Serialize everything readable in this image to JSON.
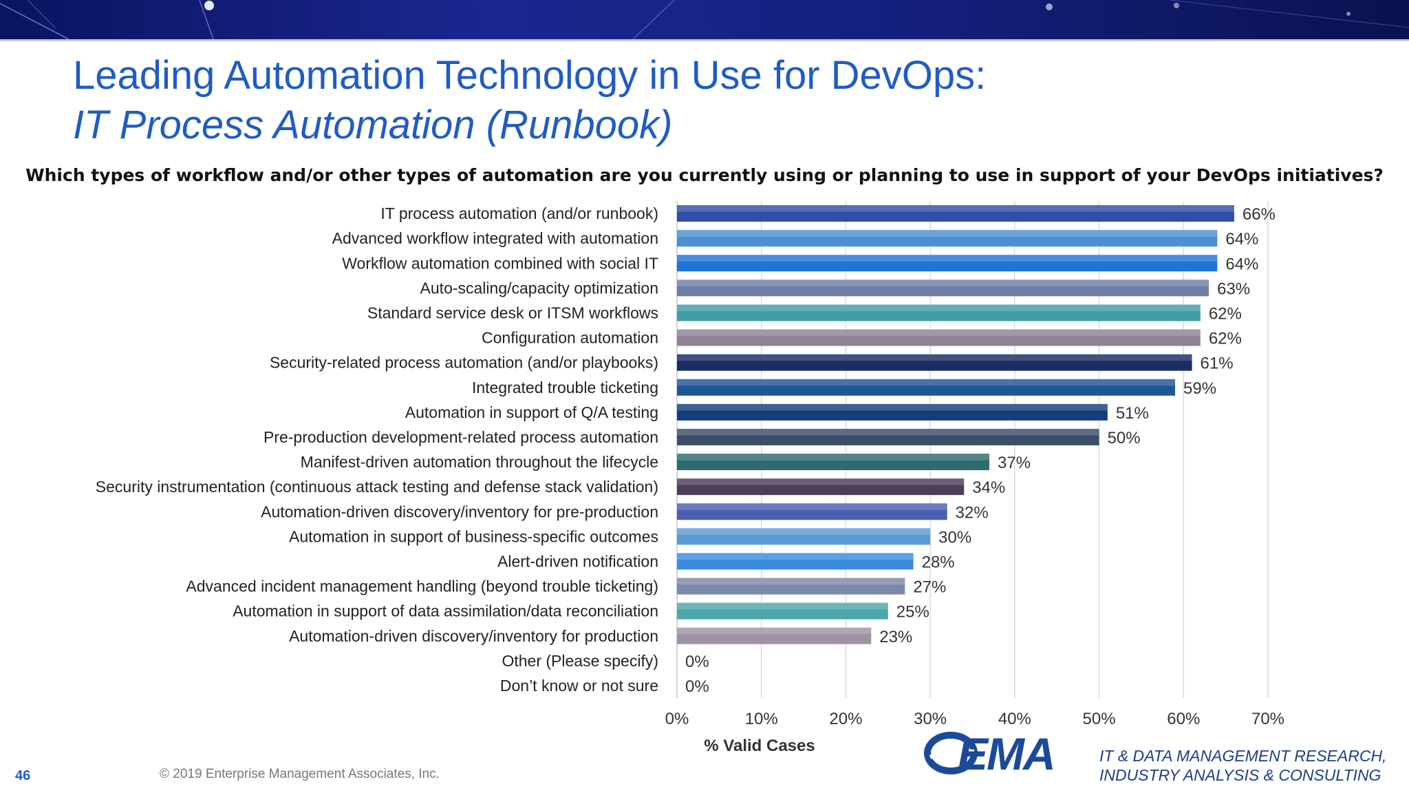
{
  "slide": {
    "title_line1": "Leading Automation Technology in Use for DevOps:",
    "title_line2": "IT Process Automation (Runbook)",
    "question": "Which types of workflow and/or other types of automation are you currently using or planning to use in support of your DevOps initiatives?",
    "page_number": "46",
    "copyright": "© 2019 Enterprise Management Associates, Inc.",
    "logo_text": "EMA",
    "tagline_line1": "IT & DATA MANAGEMENT RESEARCH,",
    "tagline_line2": "INDUSTRY ANALYSIS & CONSULTING"
  },
  "chart_data": {
    "type": "bar",
    "orientation": "horizontal",
    "xlabel": "% Valid Cases",
    "xlim": [
      0,
      70
    ],
    "xticks": [
      "0%",
      "10%",
      "20%",
      "30%",
      "40%",
      "50%",
      "60%",
      "70%"
    ],
    "grid": true,
    "categories": [
      "IT process automation (and/or runbook)",
      "Advanced workflow integrated with automation",
      "Workflow automation combined with social IT",
      "Auto-scaling/capacity optimization",
      "Standard service desk or ITSM workflows",
      "Configuration automation",
      "Security-related process automation (and/or playbooks)",
      "Integrated trouble ticketing",
      "Automation in support of Q/A testing",
      "Pre-production development-related process automation",
      "Manifest-driven automation throughout the lifecycle",
      "Security instrumentation (continuous attack testing and defense stack validation)",
      "Automation-driven discovery/inventory for pre-production",
      "Automation in support of business-specific outcomes",
      "Alert-driven notification",
      "Advanced incident management handling (beyond trouble ticketing)",
      "Automation in support of data assimilation/data reconciliation",
      "Automation-driven discovery/inventory for production",
      "Other (Please specify)",
      "Don’t know or not sure"
    ],
    "values": [
      66,
      64,
      64,
      63,
      62,
      62,
      61,
      59,
      51,
      50,
      37,
      34,
      32,
      30,
      28,
      27,
      25,
      23,
      0,
      0
    ],
    "value_labels": [
      "66%",
      "64%",
      "64%",
      "63%",
      "62%",
      "62%",
      "61%",
      "59%",
      "51%",
      "50%",
      "37%",
      "34%",
      "32%",
      "30%",
      "28%",
      "27%",
      "25%",
      "23%",
      "0%",
      "0%"
    ],
    "colors": [
      "#2f4ea8",
      "#4d8fd0",
      "#1f74d6",
      "#6f7ea6",
      "#3f9ea6",
      "#8e8293",
      "#1c2a66",
      "#1f5694",
      "#143e7a",
      "#3b4d68",
      "#2e6b6d",
      "#4c3e58",
      "#4a5fb4",
      "#5b9ad3",
      "#3a8be0",
      "#7a8aa8",
      "#4ea6aa",
      "#9f93a3",
      "#999999",
      "#999999"
    ]
  }
}
